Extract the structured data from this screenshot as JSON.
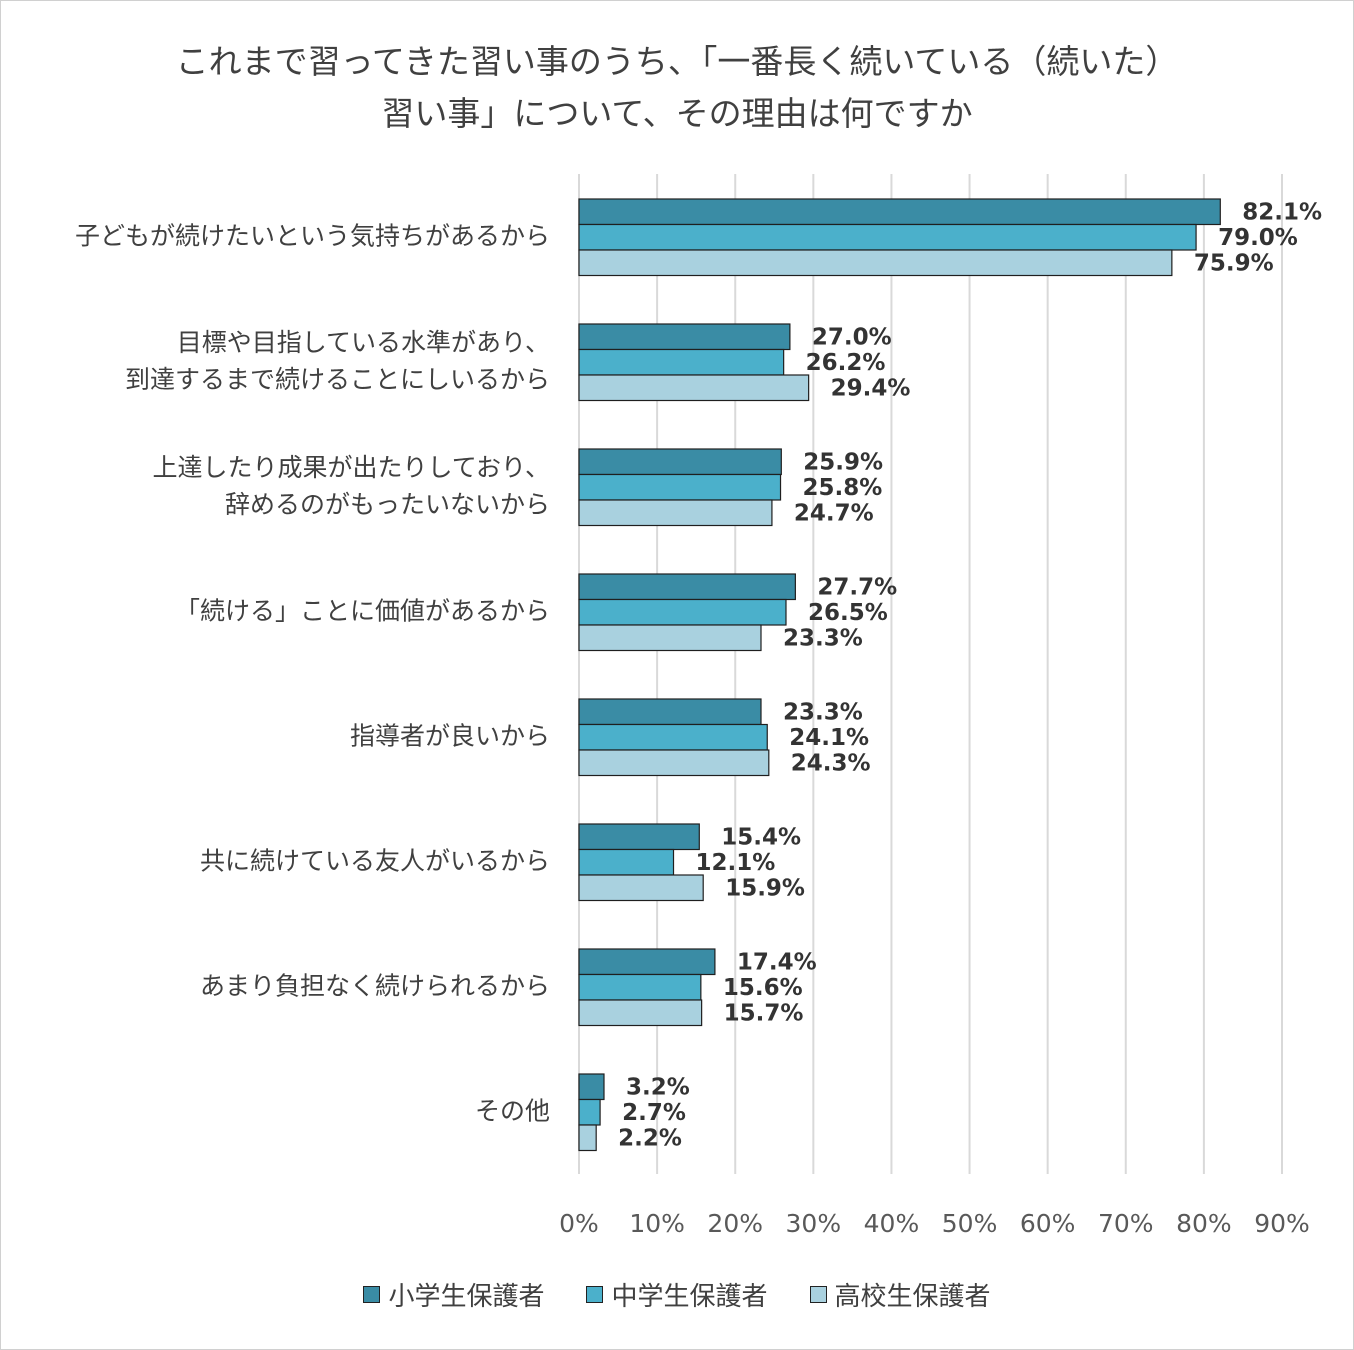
{
  "chart_data": {
    "type": "bar",
    "orientation": "horizontal",
    "title_lines": [
      "これまで習ってきた習い事のうち、「一番長く続いている（続いた）",
      "習い事」について、その理由は何ですか"
    ],
    "categories": [
      [
        "子どもが続けたいという気持ちがあるから"
      ],
      [
        "目標や目指している水準があり、",
        "到達するまで続けることにしいるから"
      ],
      [
        "上達したり成果が出たりしており、",
        "辞めるのがもったいないから"
      ],
      [
        "「続ける」ことに価値があるから"
      ],
      [
        "指導者が良いから"
      ],
      [
        "共に続けている友人がいるから"
      ],
      [
        "あまり負担なく続けられるから"
      ],
      [
        "その他"
      ]
    ],
    "series": [
      {
        "name": "小学生保護者",
        "color": "#3a8ca5",
        "values": [
          82.1,
          27.0,
          25.9,
          27.7,
          23.3,
          15.4,
          17.4,
          3.2
        ],
        "labels": [
          "82.1%",
          "27.0%",
          "25.9%",
          "27.7%",
          "23.3%",
          "15.4%",
          "17.4%",
          "3.2%"
        ]
      },
      {
        "name": "中学生保護者",
        "color": "#4bb0cb",
        "values": [
          79.0,
          26.2,
          25.8,
          26.5,
          24.1,
          12.1,
          15.6,
          2.7
        ],
        "labels": [
          "79.0%",
          "26.2%",
          "25.8%",
          "26.5%",
          "24.1%",
          "12.1%",
          "15.6%",
          "2.7%"
        ]
      },
      {
        "name": "高校生保護者",
        "color": "#a9d1df",
        "values": [
          75.9,
          29.4,
          24.7,
          23.3,
          24.3,
          15.9,
          15.7,
          2.2
        ],
        "labels": [
          "75.9%",
          "29.4%",
          "24.7%",
          "23.3%",
          "24.3%",
          "15.9%",
          "15.7%",
          "2.2%"
        ]
      }
    ],
    "xlim": [
      0,
      90
    ],
    "xticks": [
      "0%",
      "10%",
      "20%",
      "30%",
      "40%",
      "50%",
      "60%",
      "70%",
      "80%",
      "90%"
    ],
    "grid": true,
    "legend_position": "bottom"
  }
}
